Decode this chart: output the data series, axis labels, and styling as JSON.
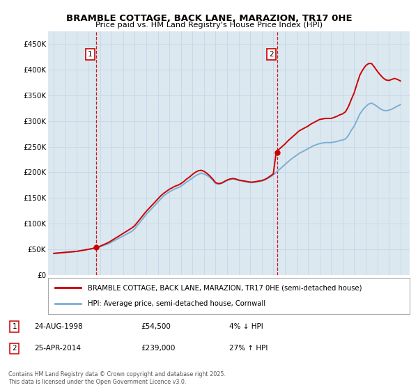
{
  "title": "BRAMBLE COTTAGE, BACK LANE, MARAZION, TR17 0HE",
  "subtitle": "Price paid vs. HM Land Registry's House Price Index (HPI)",
  "legend_line1": "BRAMBLE COTTAGE, BACK LANE, MARAZION, TR17 0HE (semi-detached house)",
  "legend_line2": "HPI: Average price, semi-detached house, Cornwall",
  "footer": "Contains HM Land Registry data © Crown copyright and database right 2025.\nThis data is licensed under the Open Government Licence v3.0.",
  "sale1_date": "24-AUG-1998",
  "sale1_price": 54500,
  "sale1_hpi": "4% ↓ HPI",
  "sale2_date": "25-APR-2014",
  "sale2_price": 239000,
  "sale2_hpi": "27% ↑ HPI",
  "sale1_year": 1998.65,
  "sale2_year": 2014.32,
  "house_color": "#cc0000",
  "hpi_color": "#7bafd4",
  "sale_marker_color": "#cc0000",
  "vline_color": "#cc0000",
  "grid_color": "#c8d8e8",
  "background_color": "#dce8f0",
  "ylim": [
    0,
    475000
  ],
  "xlim_start": 1994.5,
  "xlim_end": 2025.8,
  "yticks": [
    0,
    50000,
    100000,
    150000,
    200000,
    250000,
    300000,
    350000,
    400000,
    450000
  ],
  "ytick_labels": [
    "£0",
    "£50K",
    "£100K",
    "£150K",
    "£200K",
    "£250K",
    "£300K",
    "£350K",
    "£400K",
    "£450K"
  ],
  "xticks": [
    1995,
    1996,
    1997,
    1998,
    1999,
    2000,
    2001,
    2002,
    2003,
    2004,
    2005,
    2006,
    2007,
    2008,
    2009,
    2010,
    2011,
    2012,
    2013,
    2014,
    2015,
    2016,
    2017,
    2018,
    2019,
    2020,
    2021,
    2022,
    2023,
    2024,
    2025
  ],
  "hpi_data": [
    [
      1995,
      42000
    ],
    [
      1995.25,
      42500
    ],
    [
      1995.5,
      43000
    ],
    [
      1995.75,
      43500
    ],
    [
      1996,
      44000
    ],
    [
      1996.25,
      44500
    ],
    [
      1996.5,
      45000
    ],
    [
      1996.75,
      45500
    ],
    [
      1997,
      46000
    ],
    [
      1997.25,
      47000
    ],
    [
      1997.5,
      48000
    ],
    [
      1997.75,
      49000
    ],
    [
      1998,
      50000
    ],
    [
      1998.25,
      51000
    ],
    [
      1998.5,
      52000
    ],
    [
      1998.75,
      53000
    ],
    [
      1999,
      55000
    ],
    [
      1999.25,
      57000
    ],
    [
      1999.5,
      59000
    ],
    [
      1999.75,
      61000
    ],
    [
      2000,
      64000
    ],
    [
      2000.25,
      67000
    ],
    [
      2000.5,
      70000
    ],
    [
      2000.75,
      73000
    ],
    [
      2001,
      76000
    ],
    [
      2001.25,
      79000
    ],
    [
      2001.5,
      82000
    ],
    [
      2001.75,
      85000
    ],
    [
      2002,
      90000
    ],
    [
      2002.25,
      97000
    ],
    [
      2002.5,
      104000
    ],
    [
      2002.75,
      111000
    ],
    [
      2003,
      118000
    ],
    [
      2003.25,
      124000
    ],
    [
      2003.5,
      130000
    ],
    [
      2003.75,
      136000
    ],
    [
      2004,
      142000
    ],
    [
      2004.25,
      148000
    ],
    [
      2004.5,
      154000
    ],
    [
      2004.75,
      158000
    ],
    [
      2005,
      162000
    ],
    [
      2005.25,
      165000
    ],
    [
      2005.5,
      168000
    ],
    [
      2005.75,
      170000
    ],
    [
      2006,
      173000
    ],
    [
      2006.25,
      177000
    ],
    [
      2006.5,
      181000
    ],
    [
      2006.75,
      185000
    ],
    [
      2007,
      189000
    ],
    [
      2007.25,
      193000
    ],
    [
      2007.5,
      196000
    ],
    [
      2007.75,
      198000
    ],
    [
      2008,
      197000
    ],
    [
      2008.25,
      194000
    ],
    [
      2008.5,
      190000
    ],
    [
      2008.75,
      185000
    ],
    [
      2009,
      178000
    ],
    [
      2009.25,
      177000
    ],
    [
      2009.5,
      178000
    ],
    [
      2009.75,
      181000
    ],
    [
      2010,
      184000
    ],
    [
      2010.25,
      186000
    ],
    [
      2010.5,
      187000
    ],
    [
      2010.75,
      186000
    ],
    [
      2011,
      184000
    ],
    [
      2011.25,
      183000
    ],
    [
      2011.5,
      182000
    ],
    [
      2011.75,
      181000
    ],
    [
      2012,
      180000
    ],
    [
      2012.25,
      180000
    ],
    [
      2012.5,
      181000
    ],
    [
      2012.75,
      182000
    ],
    [
      2013,
      183000
    ],
    [
      2013.25,
      185000
    ],
    [
      2013.5,
      188000
    ],
    [
      2013.75,
      191000
    ],
    [
      2014,
      195000
    ],
    [
      2014.25,
      200000
    ],
    [
      2014.5,
      205000
    ],
    [
      2014.75,
      210000
    ],
    [
      2015,
      215000
    ],
    [
      2015.25,
      220000
    ],
    [
      2015.5,
      225000
    ],
    [
      2015.75,
      229000
    ],
    [
      2016,
      233000
    ],
    [
      2016.25,
      237000
    ],
    [
      2016.5,
      240000
    ],
    [
      2016.75,
      243000
    ],
    [
      2017,
      246000
    ],
    [
      2017.25,
      249000
    ],
    [
      2017.5,
      252000
    ],
    [
      2017.75,
      254000
    ],
    [
      2018,
      256000
    ],
    [
      2018.25,
      257000
    ],
    [
      2018.5,
      258000
    ],
    [
      2018.75,
      258000
    ],
    [
      2019,
      258000
    ],
    [
      2019.25,
      259000
    ],
    [
      2019.5,
      260000
    ],
    [
      2019.75,
      262000
    ],
    [
      2020,
      263000
    ],
    [
      2020.25,
      265000
    ],
    [
      2020.5,
      272000
    ],
    [
      2020.75,
      282000
    ],
    [
      2021,
      290000
    ],
    [
      2021.25,
      302000
    ],
    [
      2021.5,
      314000
    ],
    [
      2021.75,
      322000
    ],
    [
      2022,
      328000
    ],
    [
      2022.25,
      333000
    ],
    [
      2022.5,
      335000
    ],
    [
      2022.75,
      332000
    ],
    [
      2023,
      328000
    ],
    [
      2023.25,
      324000
    ],
    [
      2023.5,
      321000
    ],
    [
      2023.75,
      320000
    ],
    [
      2024,
      321000
    ],
    [
      2024.25,
      323000
    ],
    [
      2024.5,
      326000
    ],
    [
      2024.75,
      329000
    ],
    [
      2025,
      332000
    ]
  ],
  "house_data": [
    [
      1995,
      42000
    ],
    [
      1995.25,
      42500
    ],
    [
      1995.5,
      43000
    ],
    [
      1995.75,
      43500
    ],
    [
      1996,
      44000
    ],
    [
      1996.25,
      44500
    ],
    [
      1996.5,
      45000
    ],
    [
      1996.75,
      45500
    ],
    [
      1997,
      46000
    ],
    [
      1997.25,
      47000
    ],
    [
      1997.5,
      48000
    ],
    [
      1997.75,
      49000
    ],
    [
      1998,
      50000
    ],
    [
      1998.25,
      51000
    ],
    [
      1998.5,
      52500
    ],
    [
      1998.75,
      53500
    ],
    [
      1999,
      56000
    ],
    [
      1999.25,
      58500
    ],
    [
      1999.5,
      61000
    ],
    [
      1999.75,
      63500
    ],
    [
      2000,
      67000
    ],
    [
      2000.25,
      70500
    ],
    [
      2000.5,
      74000
    ],
    [
      2000.75,
      77500
    ],
    [
      2001,
      81000
    ],
    [
      2001.25,
      84500
    ],
    [
      2001.5,
      88000
    ],
    [
      2001.75,
      91500
    ],
    [
      2002,
      96000
    ],
    [
      2002.25,
      103000
    ],
    [
      2002.5,
      110000
    ],
    [
      2002.75,
      117000
    ],
    [
      2003,
      124000
    ],
    [
      2003.25,
      130000
    ],
    [
      2003.5,
      136000
    ],
    [
      2003.75,
      142000
    ],
    [
      2004,
      148000
    ],
    [
      2004.25,
      154000
    ],
    [
      2004.5,
      159000
    ],
    [
      2004.75,
      163000
    ],
    [
      2005,
      167000
    ],
    [
      2005.25,
      170000
    ],
    [
      2005.5,
      173000
    ],
    [
      2005.75,
      175000
    ],
    [
      2006,
      178000
    ],
    [
      2006.25,
      182000
    ],
    [
      2006.5,
      187000
    ],
    [
      2006.75,
      191000
    ],
    [
      2007,
      196000
    ],
    [
      2007.25,
      200000
    ],
    [
      2007.5,
      203000
    ],
    [
      2007.75,
      204000
    ],
    [
      2008,
      202000
    ],
    [
      2008.25,
      198000
    ],
    [
      2008.5,
      193000
    ],
    [
      2008.75,
      187000
    ],
    [
      2009,
      180000
    ],
    [
      2009.25,
      178000
    ],
    [
      2009.5,
      179000
    ],
    [
      2009.75,
      182000
    ],
    [
      2010,
      185000
    ],
    [
      2010.25,
      187000
    ],
    [
      2010.5,
      188000
    ],
    [
      2010.75,
      187000
    ],
    [
      2011,
      185000
    ],
    [
      2011.25,
      184000
    ],
    [
      2011.5,
      183000
    ],
    [
      2011.75,
      182000
    ],
    [
      2012,
      181000
    ],
    [
      2012.25,
      181000
    ],
    [
      2012.5,
      182000
    ],
    [
      2012.75,
      183000
    ],
    [
      2013,
      184000
    ],
    [
      2013.25,
      186000
    ],
    [
      2013.5,
      189000
    ],
    [
      2013.75,
      193000
    ],
    [
      2014,
      197000
    ],
    [
      2014.25,
      240000
    ],
    [
      2014.5,
      245000
    ],
    [
      2014.75,
      250000
    ],
    [
      2015,
      255000
    ],
    [
      2015.25,
      261000
    ],
    [
      2015.5,
      266000
    ],
    [
      2015.75,
      271000
    ],
    [
      2016,
      276000
    ],
    [
      2016.25,
      281000
    ],
    [
      2016.5,
      284000
    ],
    [
      2016.75,
      287000
    ],
    [
      2017,
      290000
    ],
    [
      2017.25,
      294000
    ],
    [
      2017.5,
      297000
    ],
    [
      2017.75,
      300000
    ],
    [
      2018,
      303000
    ],
    [
      2018.25,
      304000
    ],
    [
      2018.5,
      305000
    ],
    [
      2018.75,
      305000
    ],
    [
      2019,
      305000
    ],
    [
      2019.25,
      307000
    ],
    [
      2019.5,
      309000
    ],
    [
      2019.75,
      312000
    ],
    [
      2020,
      314000
    ],
    [
      2020.25,
      318000
    ],
    [
      2020.5,
      328000
    ],
    [
      2020.75,
      342000
    ],
    [
      2021,
      355000
    ],
    [
      2021.25,
      373000
    ],
    [
      2021.5,
      390000
    ],
    [
      2021.75,
      400000
    ],
    [
      2022,
      408000
    ],
    [
      2022.25,
      412000
    ],
    [
      2022.5,
      412000
    ],
    [
      2022.75,
      405000
    ],
    [
      2023,
      397000
    ],
    [
      2023.25,
      390000
    ],
    [
      2023.5,
      384000
    ],
    [
      2023.75,
      380000
    ],
    [
      2024,
      379000
    ],
    [
      2024.25,
      381000
    ],
    [
      2024.5,
      383000
    ],
    [
      2024.75,
      381000
    ],
    [
      2025,
      378000
    ]
  ]
}
